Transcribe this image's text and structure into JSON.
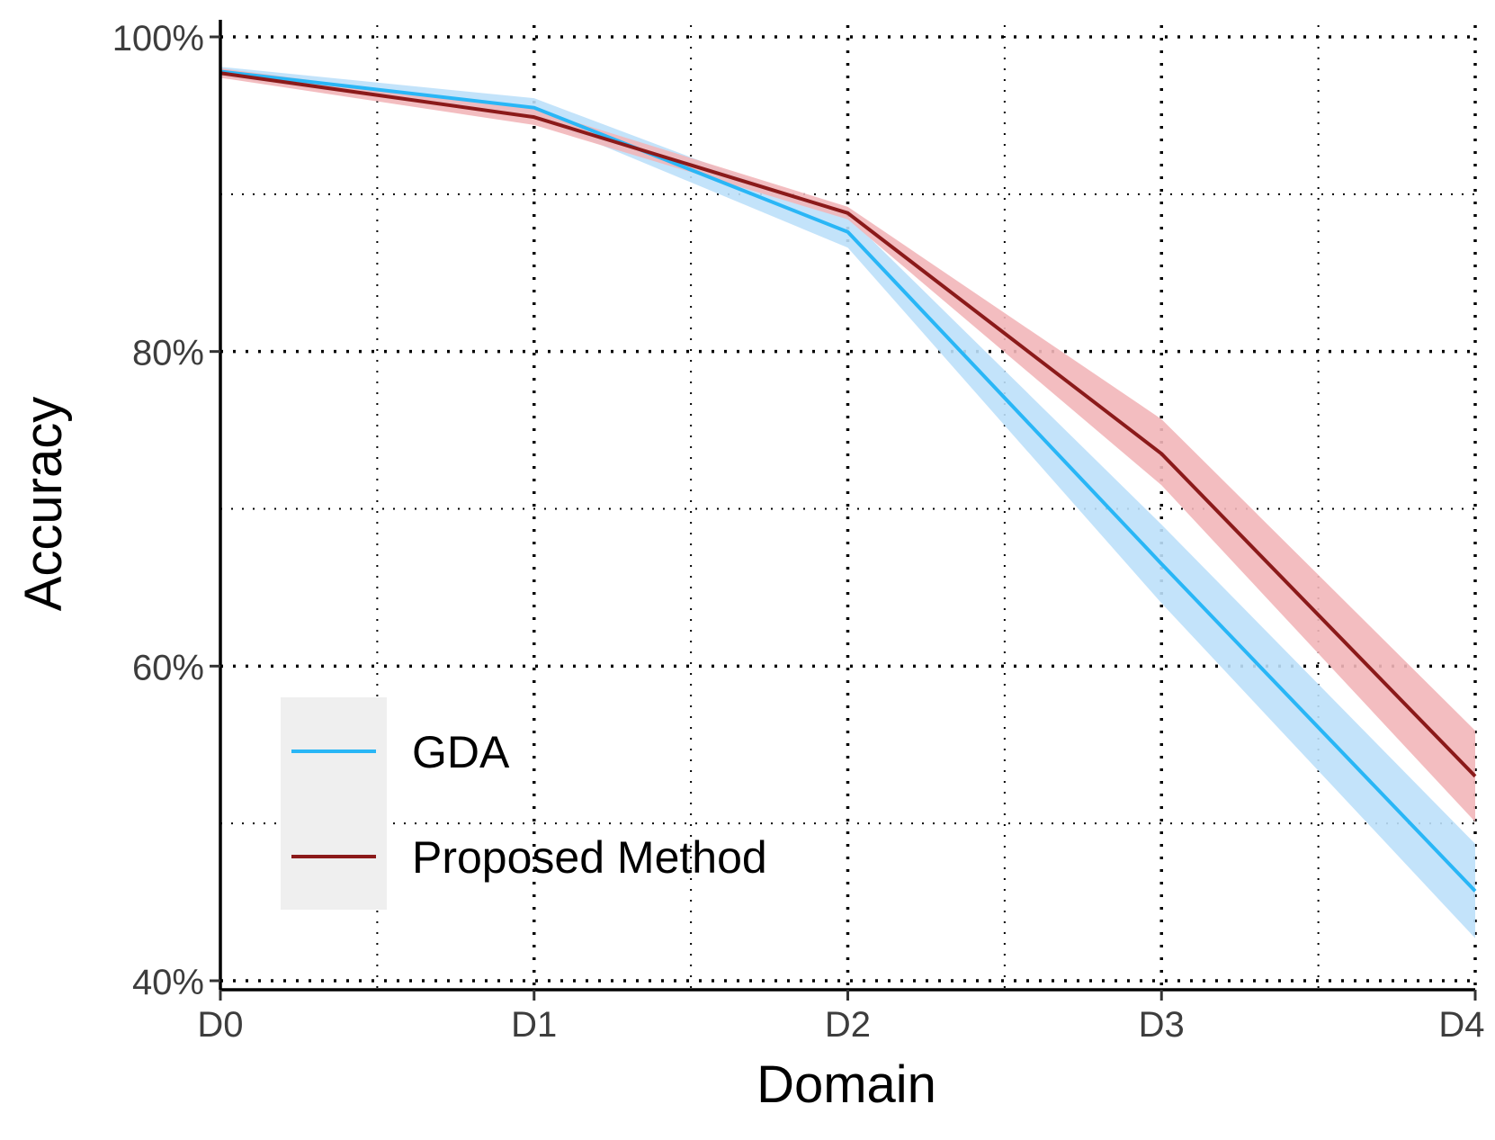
{
  "chart_data": {
    "type": "line",
    "xlabel": "Domain",
    "ylabel": "Accuracy",
    "categories": [
      "D0",
      "D1",
      "D2",
      "D3",
      "D4"
    ],
    "ylim": [
      0.4,
      1.0
    ],
    "y_tick_values": [
      0.4,
      0.6,
      0.8,
      1.0
    ],
    "y_tick_labels": [
      "40%",
      "60%",
      "80%",
      "100%"
    ],
    "y_minor_tick_values": [
      0.5,
      0.7,
      0.9
    ],
    "grid": true,
    "grid_style": "dotted",
    "legend_position": "bottom-left",
    "series": [
      {
        "name": "GDA",
        "color": "#29b6f6",
        "band_color": "#bde0f9",
        "values": [
          0.978,
          0.955,
          0.876,
          0.665,
          0.457
        ],
        "lower": [
          0.975,
          0.949,
          0.866,
          0.64,
          0.427
        ],
        "upper": [
          0.981,
          0.961,
          0.886,
          0.69,
          0.487
        ]
      },
      {
        "name": "Proposed Method",
        "color": "#8b1a1a",
        "band_color": "#f2b6b9",
        "values": [
          0.977,
          0.949,
          0.888,
          0.735,
          0.53
        ],
        "lower": [
          0.974,
          0.944,
          0.884,
          0.715,
          0.501
        ],
        "upper": [
          0.98,
          0.954,
          0.892,
          0.757,
          0.559
        ]
      }
    ]
  }
}
